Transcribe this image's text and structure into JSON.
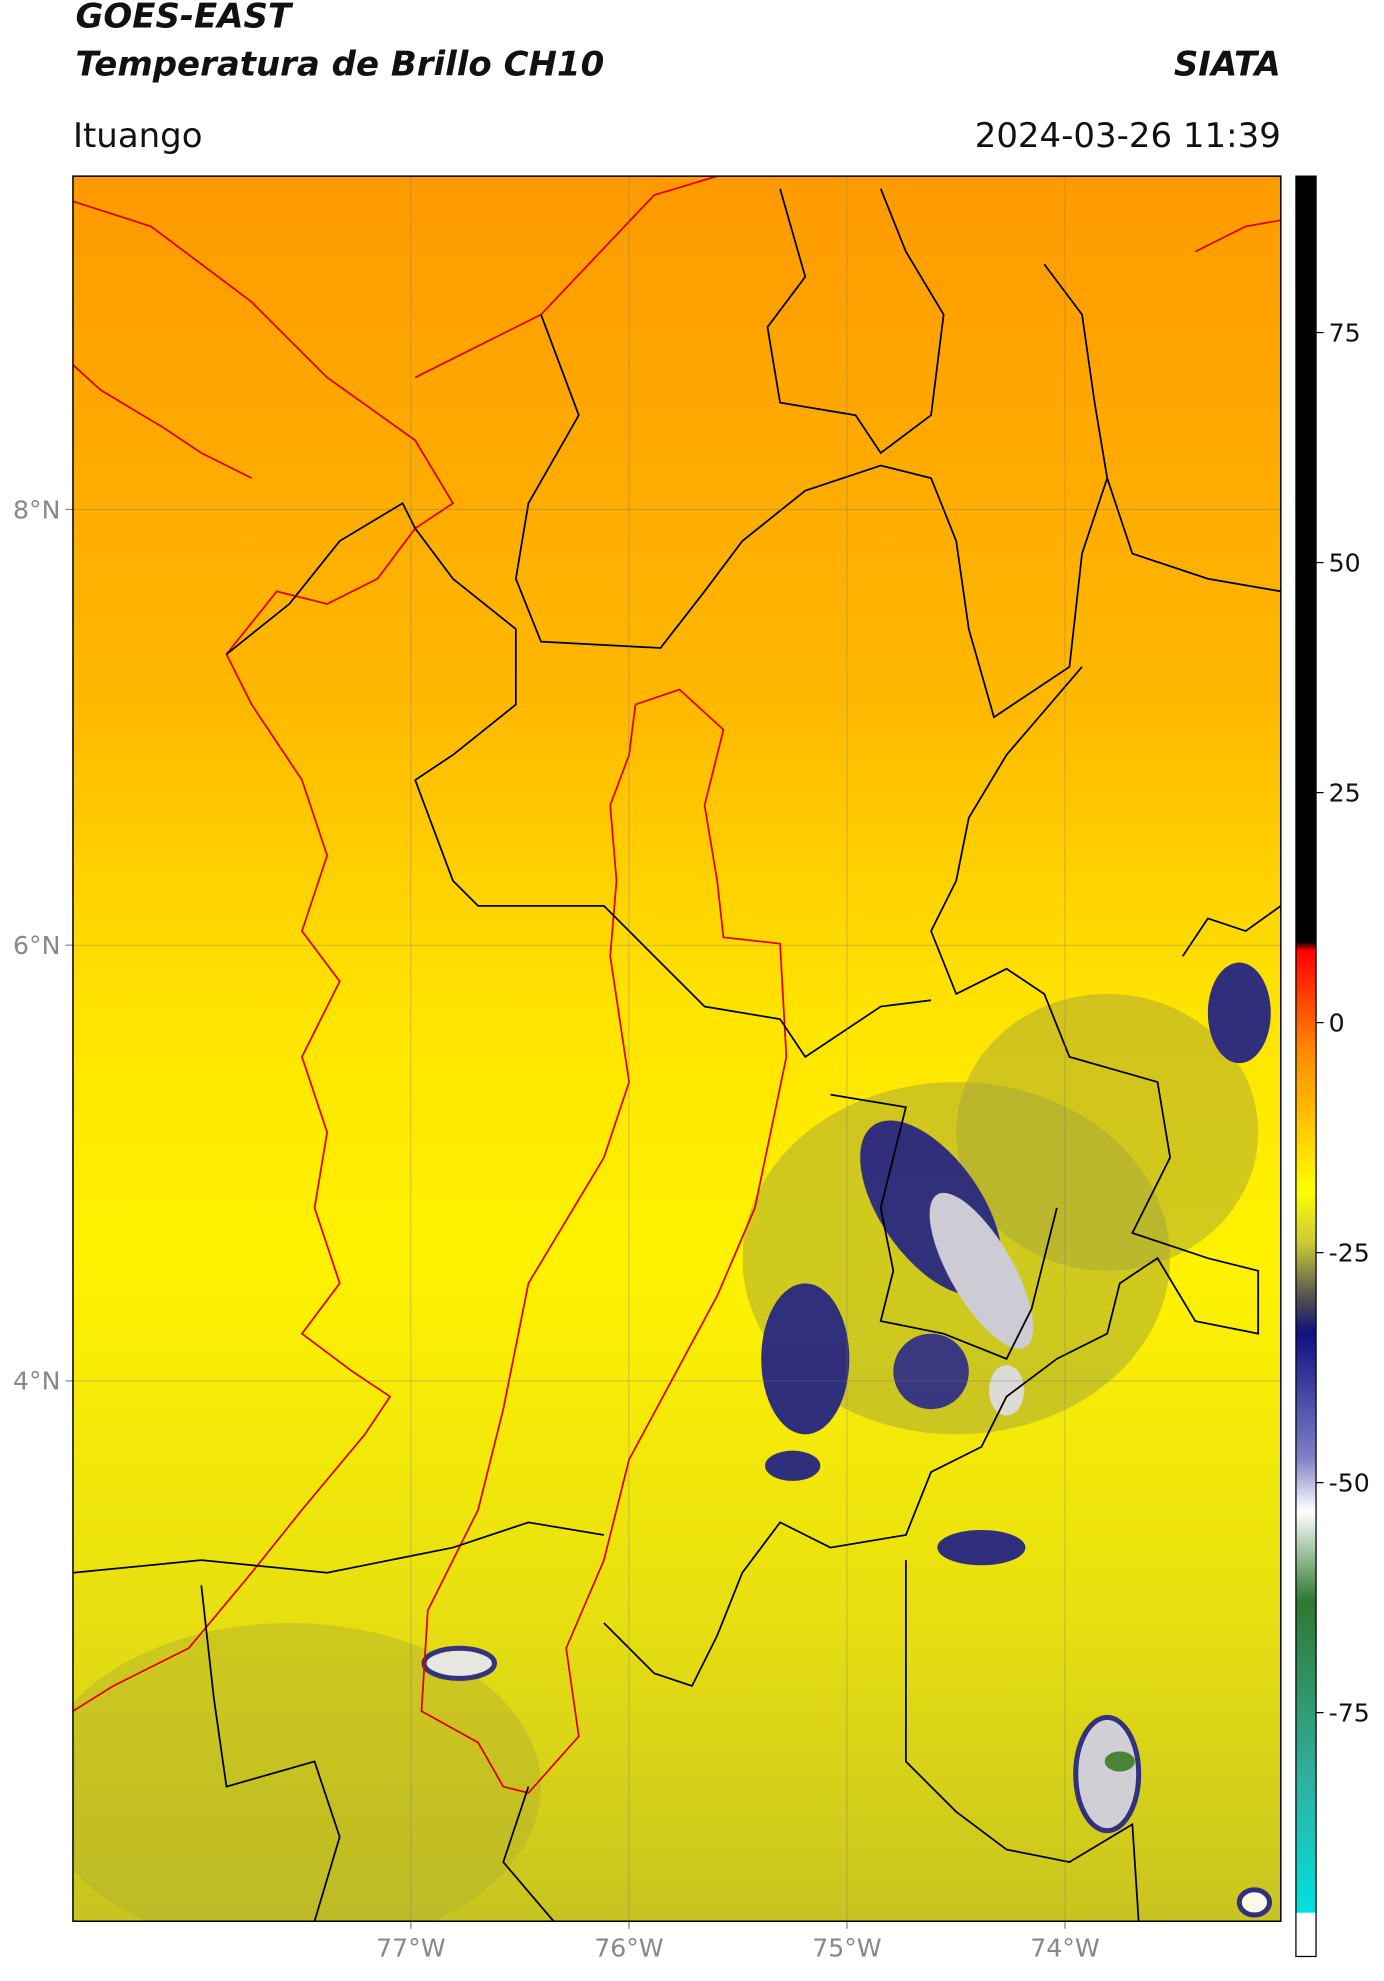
{
  "chart_data": {
    "type": "map",
    "title": "GOES-EAST",
    "subtitle": "Temperatura de Brillo CH10",
    "source": "SIATA",
    "location": "Ituango",
    "datetime": "2024-03-26 11:39",
    "xlim": [
      -78.55,
      -73.01
    ],
    "ylim": [
      1.52,
      9.53
    ],
    "xticks": [
      {
        "value": -77,
        "label": "77°W"
      },
      {
        "value": -76,
        "label": "76°W"
      },
      {
        "value": -75,
        "label": "75°W"
      },
      {
        "value": -74,
        "label": "74°W"
      }
    ],
    "yticks": [
      {
        "value": 8,
        "label": "8°N"
      },
      {
        "value": 6,
        "label": "6°N"
      },
      {
        "value": 4,
        "label": "4°N"
      }
    ],
    "grid": true,
    "colorbar": {
      "lim": [
        -101.5,
        92
      ],
      "ticks": [
        75,
        50,
        25,
        0,
        -25,
        -50,
        -75
      ]
    }
  }
}
